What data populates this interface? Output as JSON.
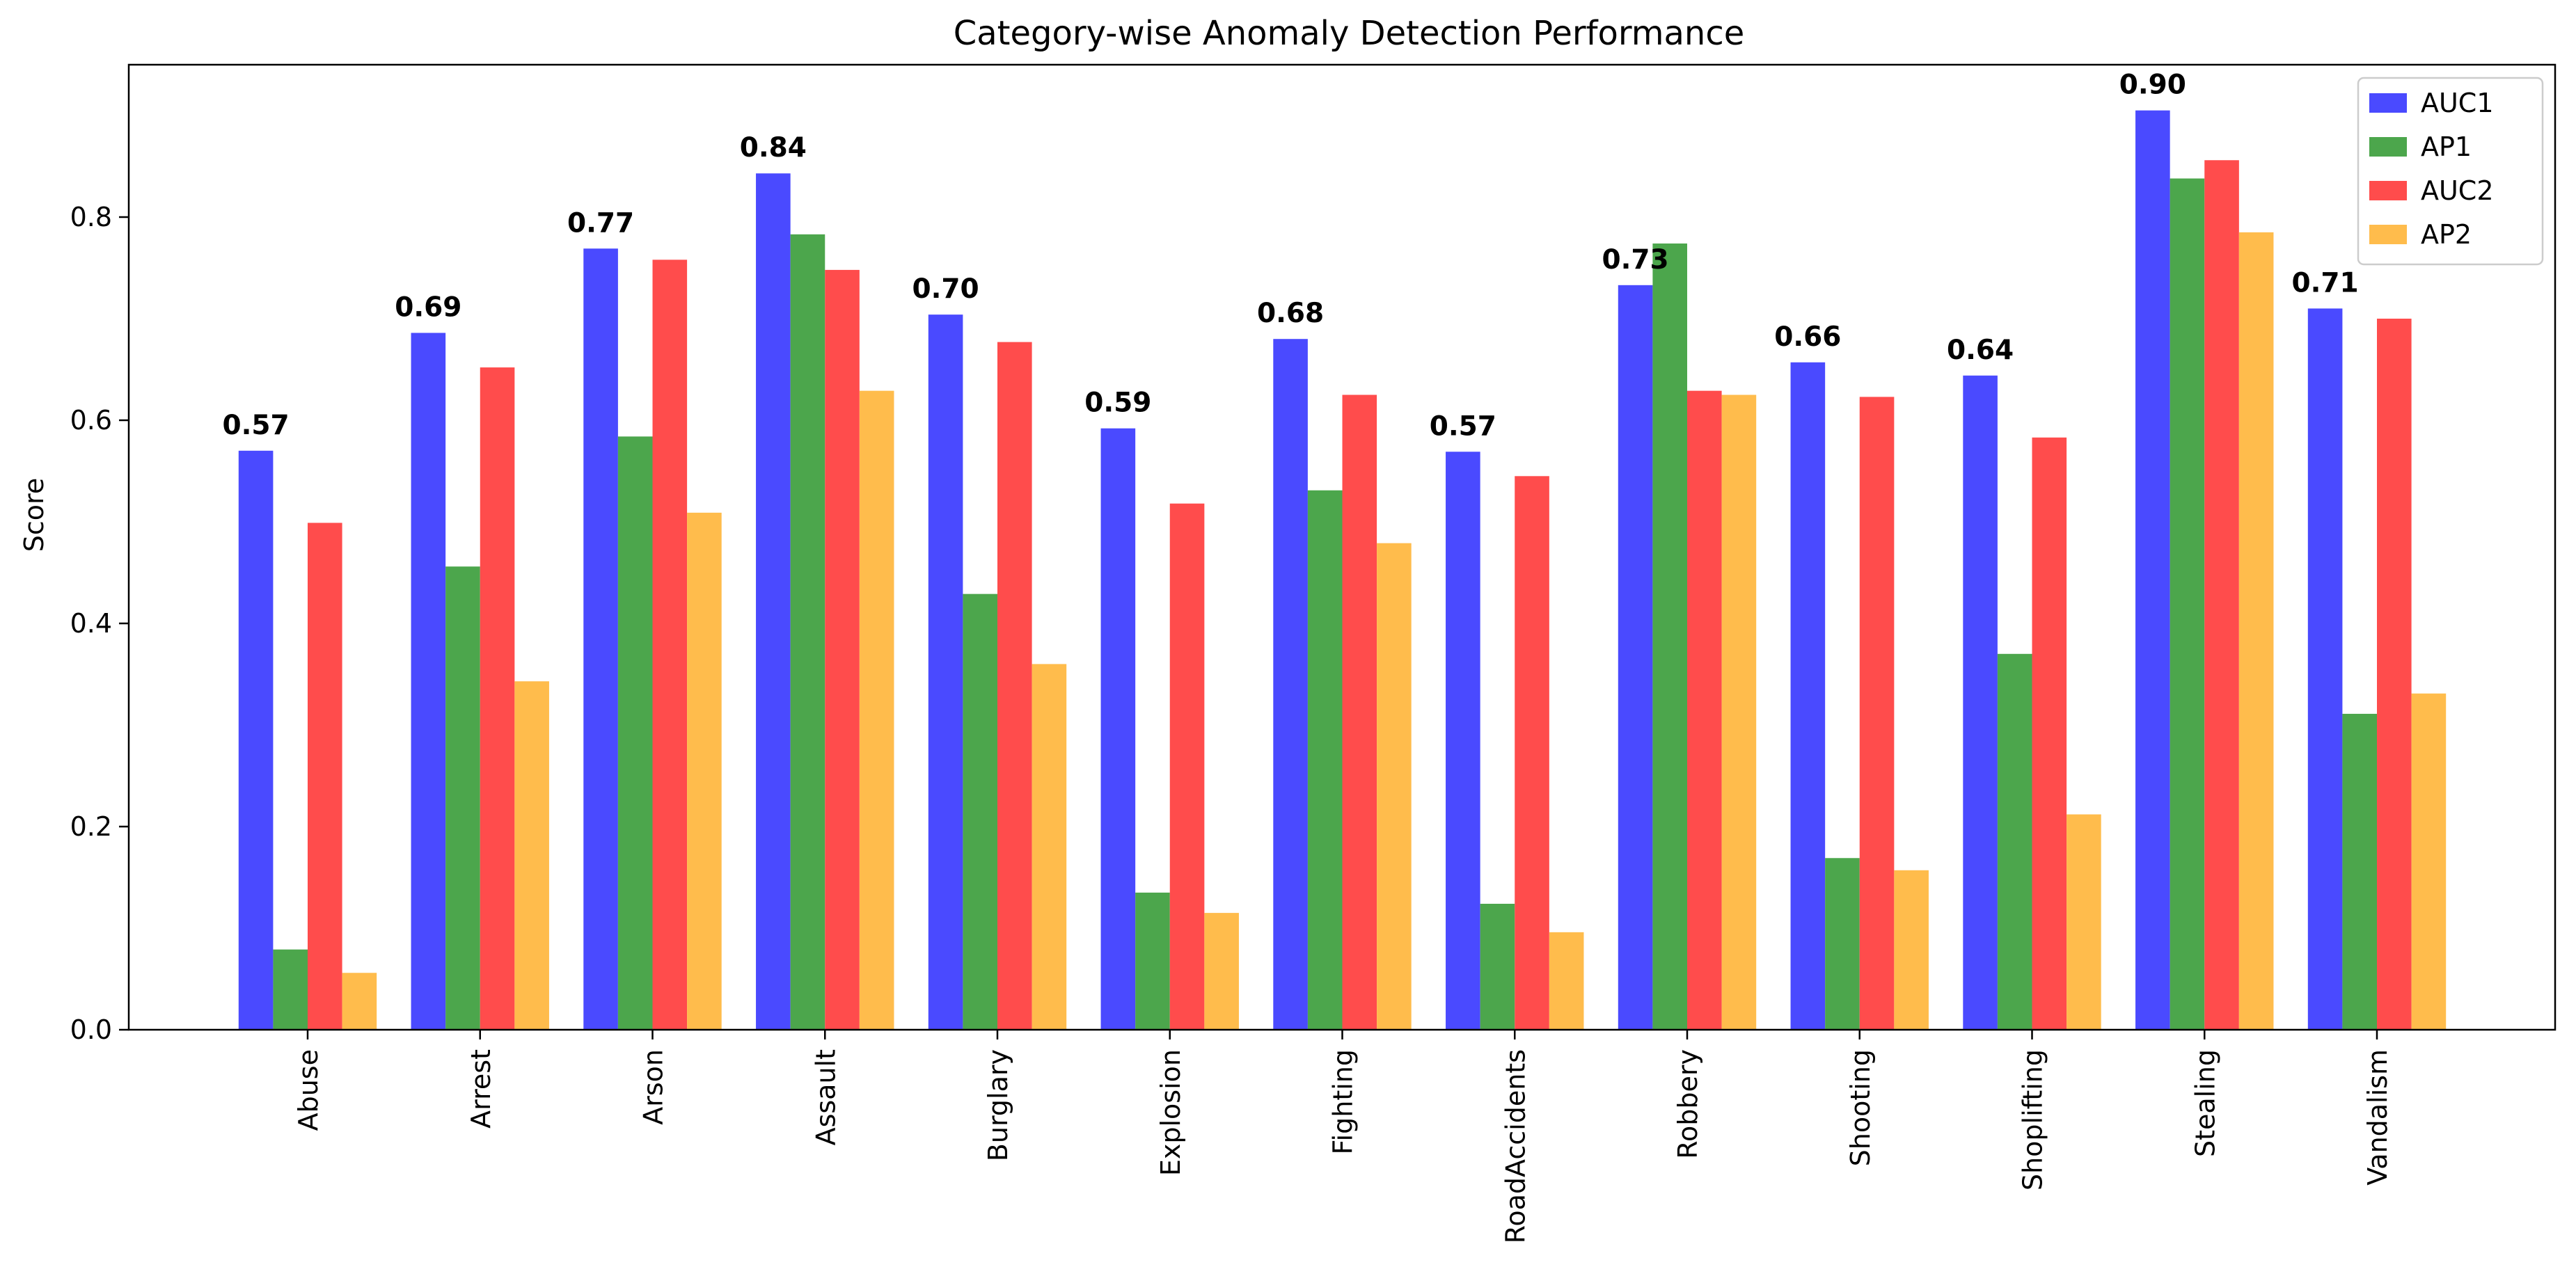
{
  "chart_data": {
    "type": "bar",
    "title": "Category-wise Anomaly Detection Performance",
    "xlabel": "",
    "ylabel": "Score",
    "ylim": [
      0,
      0.95
    ],
    "yticks": [
      "0.0",
      "0.2",
      "0.4",
      "0.6",
      "0.8"
    ],
    "grid": false,
    "legend_position": "top-right",
    "categories": [
      "Abuse",
      "Arrest",
      "Arson",
      "Assault",
      "Burglary",
      "Explosion",
      "Fighting",
      "RoadAccidents",
      "Robbery",
      "Shooting",
      "Shoplifting",
      "Stealing",
      "Vandalism"
    ],
    "series": [
      {
        "name": "AUC1",
        "color": "#4a4aff",
        "values": [
          0.57,
          0.686,
          0.769,
          0.843,
          0.704,
          0.592,
          0.68,
          0.569,
          0.733,
          0.657,
          0.644,
          0.905,
          0.71
        ]
      },
      {
        "name": "AP1",
        "color": "#4ca64c",
        "values": [
          0.079,
          0.456,
          0.584,
          0.783,
          0.429,
          0.135,
          0.531,
          0.124,
          0.774,
          0.169,
          0.37,
          0.838,
          0.311
        ]
      },
      {
        "name": "AUC2",
        "color": "#ff4c4c",
        "values": [
          0.499,
          0.652,
          0.758,
          0.748,
          0.677,
          0.518,
          0.625,
          0.545,
          0.629,
          0.623,
          0.583,
          0.856,
          0.7
        ]
      },
      {
        "name": "AP2",
        "color": "#ffbc4c",
        "values": [
          0.056,
          0.343,
          0.509,
          0.629,
          0.36,
          0.115,
          0.479,
          0.096,
          0.625,
          0.157,
          0.212,
          0.785,
          0.331
        ]
      }
    ],
    "data_labels": [
      "0.57",
      "0.69",
      "0.77",
      "0.84",
      "0.70",
      "0.59",
      "0.68",
      "0.57",
      "0.73",
      "0.66",
      "0.64",
      "0.90",
      "0.71"
    ]
  }
}
